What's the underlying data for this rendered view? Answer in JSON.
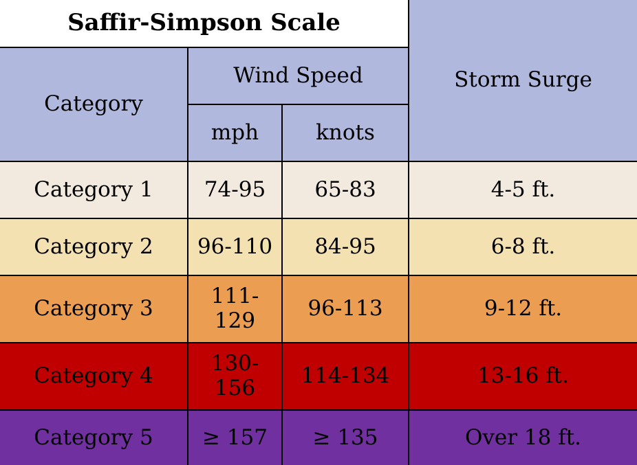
{
  "table": {
    "title": "Saffir-Simpson Scale",
    "headers": {
      "category": "Category",
      "wind_speed": "Wind Speed",
      "mph": "mph",
      "knots": "knots",
      "storm_surge": "Storm Surge"
    },
    "rows": [
      {
        "category": "Category 1",
        "mph": "74-95",
        "knots": "65-83",
        "surge": "4-5 ft.",
        "color": "#f2e9df"
      },
      {
        "category": "Category 2",
        "mph": "96-110",
        "knots": "84-95",
        "surge": "6-8 ft.",
        "color": "#f4e1b2"
      },
      {
        "category": "Category 3",
        "mph": "111-129",
        "knots": "96-113",
        "surge": "9-12 ft.",
        "color": "#eb9e52"
      },
      {
        "category": "Category 4",
        "mph": "130-156",
        "knots": "114-134",
        "surge": "13-16 ft.",
        "color": "#c00000"
      },
      {
        "category": "Category 5",
        "mph": "≥ 157",
        "knots": "≥ 135",
        "surge": "Over 18 ft.",
        "color": "#7030a0"
      }
    ],
    "header_color": "#b0b8de"
  }
}
